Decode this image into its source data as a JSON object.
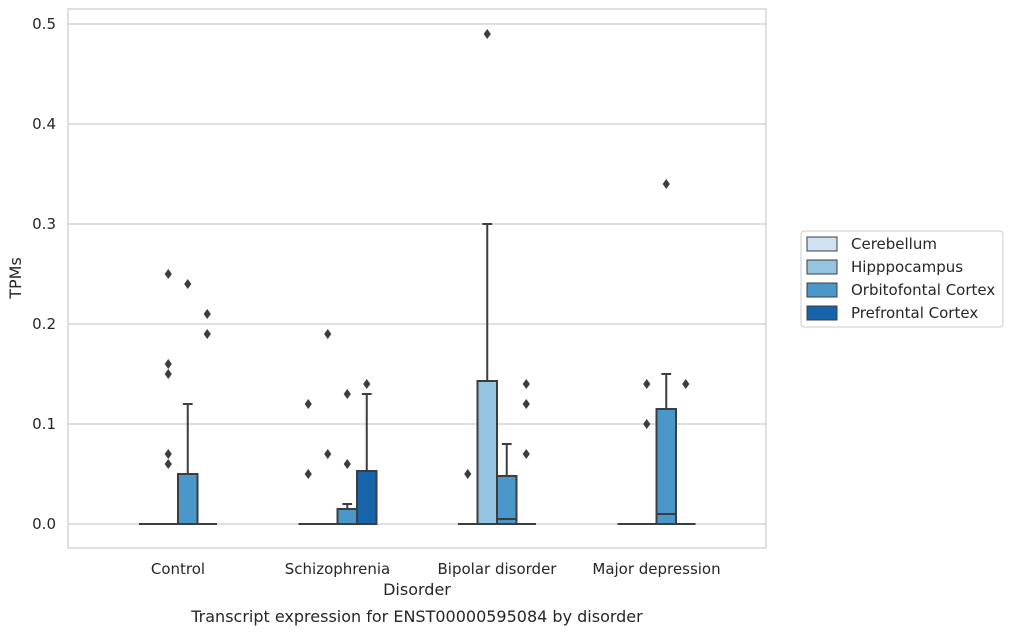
{
  "chart_data": {
    "type": "box",
    "caption": "Transcript expression for ENST00000595084 by disorder",
    "xlabel": "Disorder",
    "ylabel": "TPMs",
    "ylim": [
      -0.024,
      0.515
    ],
    "yticks": [
      "0.0",
      "0.1",
      "0.2",
      "0.3",
      "0.4",
      "0.5"
    ],
    "ytick_values": [
      0,
      0.1,
      0.2,
      0.3,
      0.4,
      0.5
    ],
    "grid": true,
    "legend_position": "right",
    "categories": [
      "Control",
      "Schizophrenia",
      "Bipolar disorder",
      "Major depression"
    ],
    "series": [
      {
        "name": "Cerebellum",
        "color": "#d0e1f2"
      },
      {
        "name": "Hipppocampus",
        "color": "#94c4df"
      },
      {
        "name": "Orbitofontal Cortex",
        "color": "#4a98c9"
      },
      {
        "name": "Prefrontal Cortex",
        "color": "#1764ab"
      }
    ],
    "boxes": [
      {
        "category": 0,
        "series": 0,
        "q1": 0,
        "median": 0,
        "q3": 0,
        "wlo": 0,
        "whi": 0,
        "outliers": []
      },
      {
        "category": 0,
        "series": 1,
        "q1": 0,
        "median": 0,
        "q3": 0,
        "wlo": 0,
        "whi": 0,
        "outliers": [
          0.06,
          0.07,
          0.15,
          0.16,
          0.25
        ]
      },
      {
        "category": 0,
        "series": 2,
        "q1": 0,
        "median": 0,
        "q3": 0.05,
        "wlo": 0,
        "whi": 0.12,
        "outliers": [
          0.24
        ]
      },
      {
        "category": 0,
        "series": 3,
        "q1": 0,
        "median": 0,
        "q3": 0,
        "wlo": 0,
        "whi": 0,
        "outliers": [
          0.19,
          0.21
        ]
      },
      {
        "category": 1,
        "series": 0,
        "q1": 0,
        "median": 0,
        "q3": 0,
        "wlo": 0,
        "whi": 0,
        "outliers": [
          0.05,
          0.12
        ]
      },
      {
        "category": 1,
        "series": 1,
        "q1": 0,
        "median": 0,
        "q3": 0,
        "wlo": 0,
        "whi": 0,
        "outliers": [
          0.07,
          0.19
        ]
      },
      {
        "category": 1,
        "series": 2,
        "q1": 0,
        "median": 0,
        "q3": 0.015,
        "wlo": 0,
        "whi": 0.02,
        "outliers": [
          0.06,
          0.13
        ]
      },
      {
        "category": 1,
        "series": 3,
        "q1": 0,
        "median": 0,
        "q3": 0.053,
        "wlo": 0,
        "whi": 0.13,
        "outliers": [
          0.14
        ]
      },
      {
        "category": 2,
        "series": 0,
        "q1": 0,
        "median": 0,
        "q3": 0,
        "wlo": 0,
        "whi": 0,
        "outliers": [
          0.05
        ]
      },
      {
        "category": 2,
        "series": 1,
        "q1": 0,
        "median": 0,
        "q3": 0.143,
        "wlo": 0,
        "whi": 0.3,
        "outliers": [
          0.49
        ]
      },
      {
        "category": 2,
        "series": 2,
        "q1": 0,
        "median": 0.005,
        "q3": 0.048,
        "wlo": 0,
        "whi": 0.08,
        "outliers": []
      },
      {
        "category": 2,
        "series": 3,
        "q1": 0,
        "median": 0,
        "q3": 0,
        "wlo": 0,
        "whi": 0,
        "outliers": [
          0.07,
          0.12,
          0.14
        ]
      },
      {
        "category": 3,
        "series": 0,
        "q1": 0,
        "median": 0,
        "q3": 0,
        "wlo": 0,
        "whi": 0,
        "outliers": []
      },
      {
        "category": 3,
        "series": 1,
        "q1": 0,
        "median": 0,
        "q3": 0,
        "wlo": 0,
        "whi": 0,
        "outliers": [
          0.1,
          0.14
        ]
      },
      {
        "category": 3,
        "series": 2,
        "q1": 0,
        "median": 0.01,
        "q3": 0.115,
        "wlo": 0,
        "whi": 0.15,
        "outliers": [
          0.34
        ]
      },
      {
        "category": 3,
        "series": 3,
        "q1": 0,
        "median": 0,
        "q3": 0,
        "wlo": 0,
        "whi": 0,
        "outliers": [
          0.14
        ]
      }
    ]
  }
}
